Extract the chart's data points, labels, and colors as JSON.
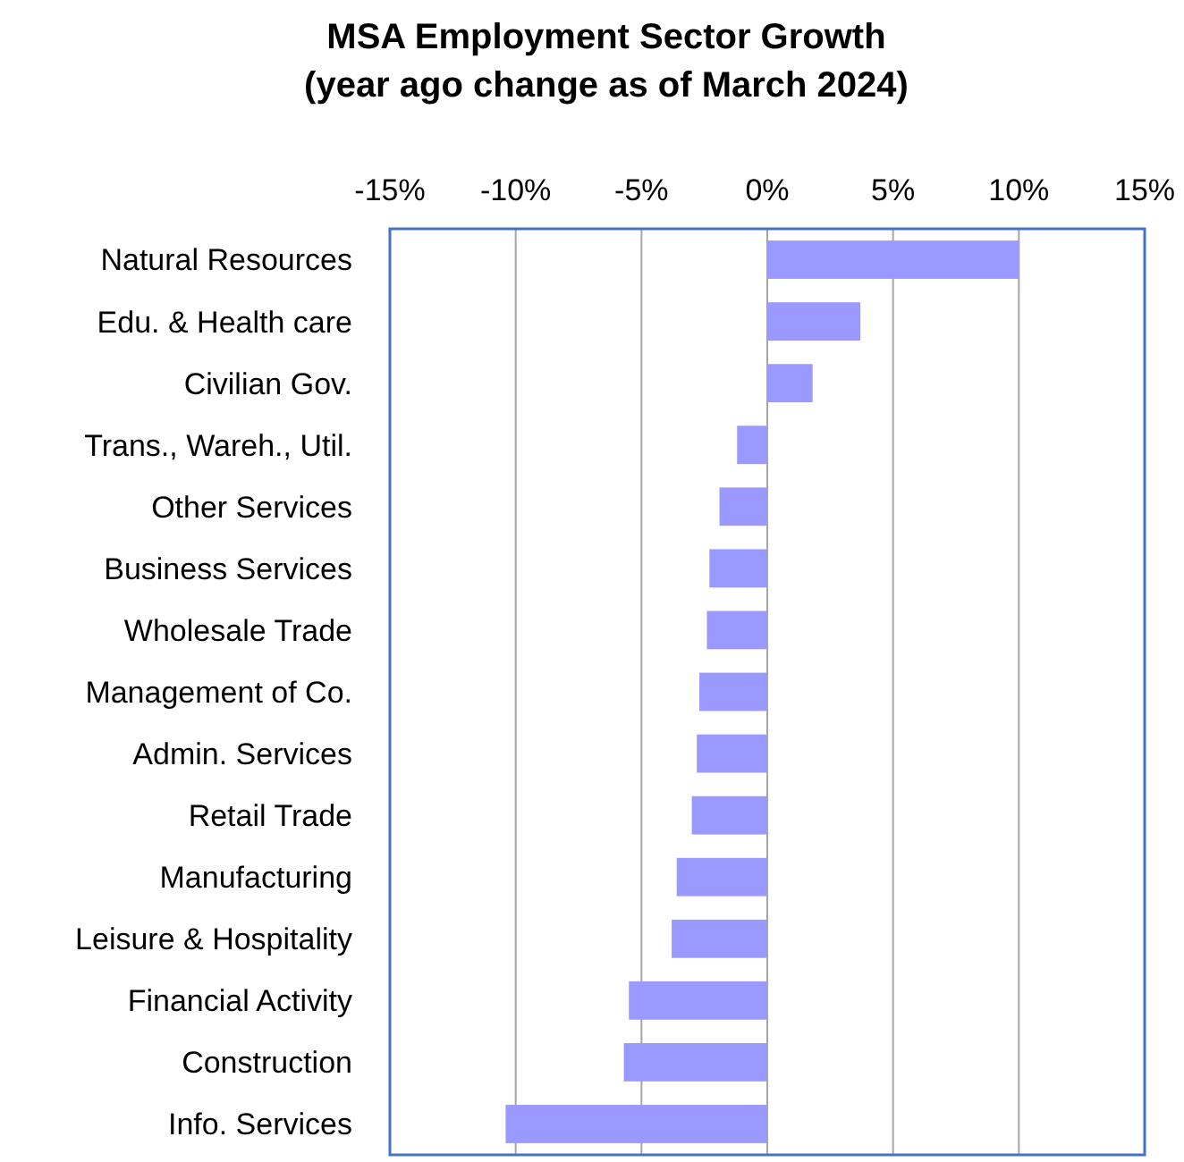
{
  "chart_data": {
    "type": "bar",
    "orientation": "horizontal",
    "title": "MSA Employment Sector Growth",
    "subtitle": "(year ago change as of March 2024)",
    "categories": [
      "Natural Resources",
      "Edu. & Health care",
      "Civilian Gov.",
      "Trans., Wareh., Util.",
      "Other Services",
      "Business Services",
      "Wholesale Trade",
      "Management of Co.",
      "Admin. Services",
      "Retail Trade",
      "Manufacturing",
      "Leisure & Hospitality",
      "Financial Activity",
      "Construction",
      "Info. Services"
    ],
    "values": [
      10.0,
      3.7,
      1.8,
      -1.2,
      -1.9,
      -2.3,
      -2.4,
      -2.7,
      -2.8,
      -3.0,
      -3.6,
      -3.8,
      -5.5,
      -5.7,
      -10.4
    ],
    "color": "#9999ff",
    "xlim": [
      -15,
      15
    ],
    "xticks": [
      {
        "value": -15,
        "label": "-15%"
      },
      {
        "value": -10,
        "label": "-10%"
      },
      {
        "value": -5,
        "label": "-5%"
      },
      {
        "value": 0,
        "label": "0%"
      },
      {
        "value": 5,
        "label": "5%"
      },
      {
        "value": 10,
        "label": "10%"
      },
      {
        "value": 15,
        "label": "15%"
      }
    ],
    "grid": "x"
  }
}
